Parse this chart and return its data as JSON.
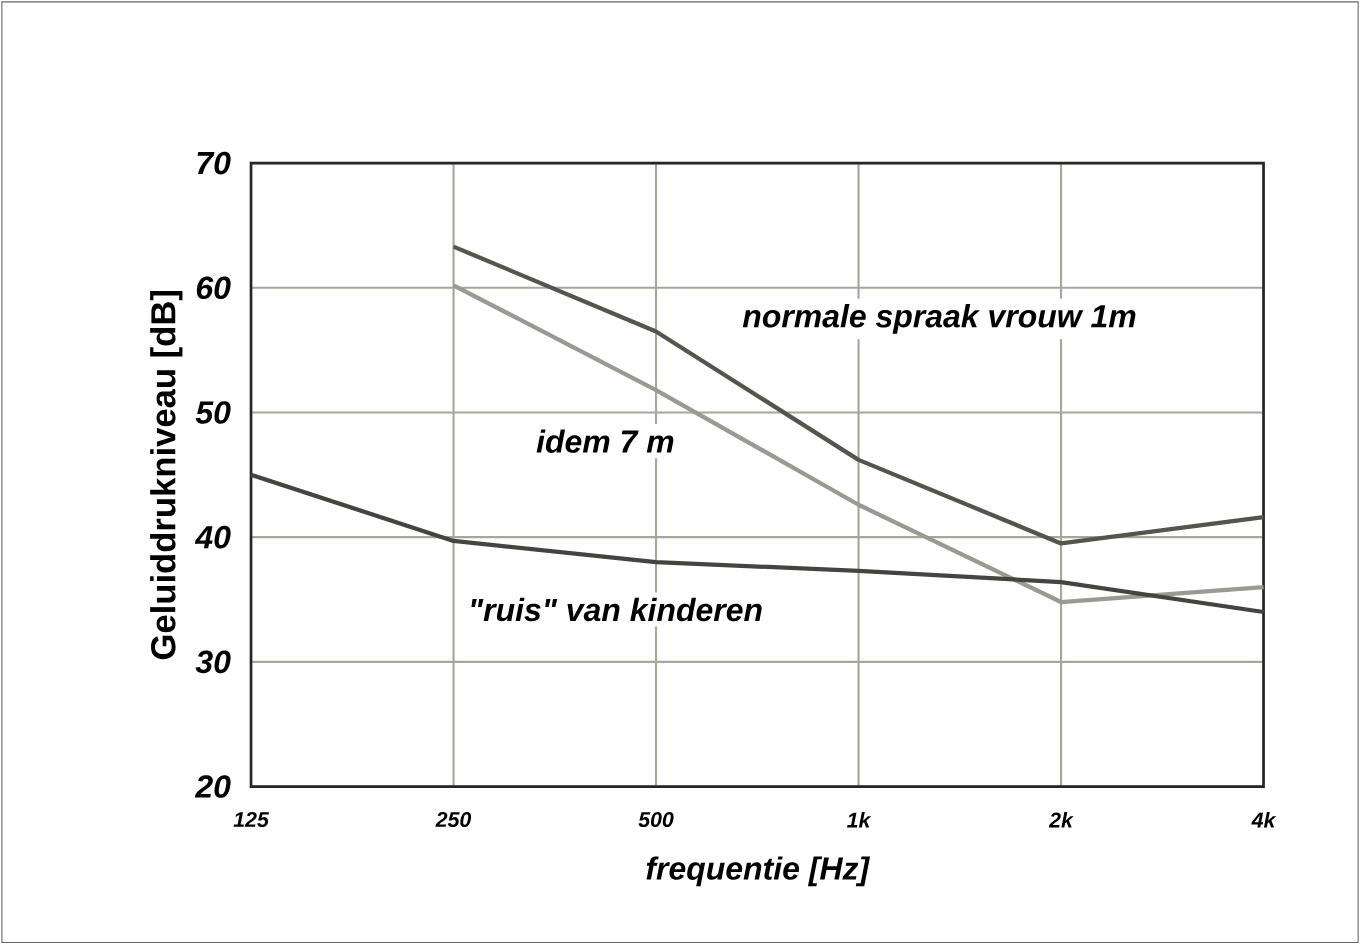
{
  "chart_data": {
    "type": "line",
    "xlabel": "frequentie  [Hz]",
    "ylabel": "Geluiddrukniveau [dB]",
    "categories": [
      "125",
      "250",
      "500",
      "1k",
      "2k",
      "4k"
    ],
    "series": [
      {
        "name": "normale spraak vrouw 1m",
        "color": "#55554d",
        "values": [
          null,
          63.3,
          56.5,
          46.2,
          39.5,
          41.6
        ]
      },
      {
        "name": "idem 7 m",
        "color": "#9a9a92",
        "values": [
          null,
          60.2,
          51.8,
          42.6,
          34.8,
          36.0
        ]
      },
      {
        "name": "\"ruis\" van kinderen",
        "color": "#45453f",
        "values": [
          45.0,
          39.7,
          38.0,
          37.3,
          36.4,
          34.0
        ]
      }
    ],
    "ylim": [
      20,
      70
    ],
    "yticks": [
      20,
      30,
      40,
      50,
      60,
      70
    ],
    "grid": true,
    "marker": "none",
    "line_style": "solid",
    "legend": false
  }
}
